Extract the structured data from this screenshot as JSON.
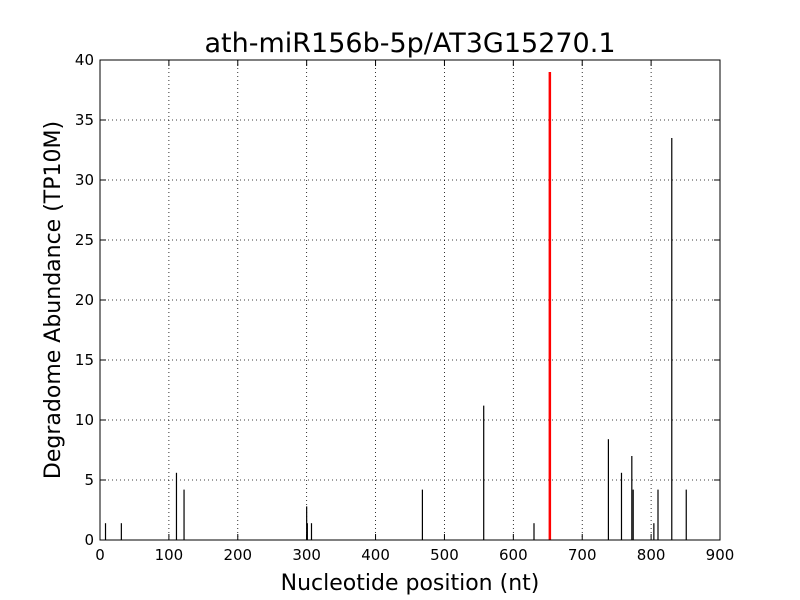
{
  "chart_data": {
    "type": "bar",
    "title": "ath-miR156b-5p/AT3G15270.1",
    "xlabel": "Nucleotide position (nt)",
    "ylabel": "Degradome Abundance (TP10M)",
    "xlim": [
      0,
      900
    ],
    "ylim": [
      0,
      40
    ],
    "xticks": [
      0,
      100,
      200,
      300,
      400,
      500,
      600,
      700,
      800,
      900
    ],
    "yticks": [
      0,
      5,
      10,
      15,
      20,
      25,
      30,
      35,
      40
    ],
    "grid": true,
    "series": [
      {
        "color": "#000000",
        "x": [
          8,
          31,
          111,
          122,
          300,
          301,
          307,
          468,
          557,
          630,
          738,
          757,
          772,
          774,
          804,
          810,
          830,
          851
        ],
        "values": [
          1.4,
          1.4,
          5.6,
          4.2,
          2.8,
          1.4,
          1.4,
          4.2,
          11.2,
          1.4,
          8.4,
          5.6,
          7.0,
          4.2,
          1.4,
          4.2,
          33.5,
          4.2
        ]
      },
      {
        "color": "#ff0000",
        "x": [
          653
        ],
        "values": [
          39.0
        ]
      }
    ]
  }
}
